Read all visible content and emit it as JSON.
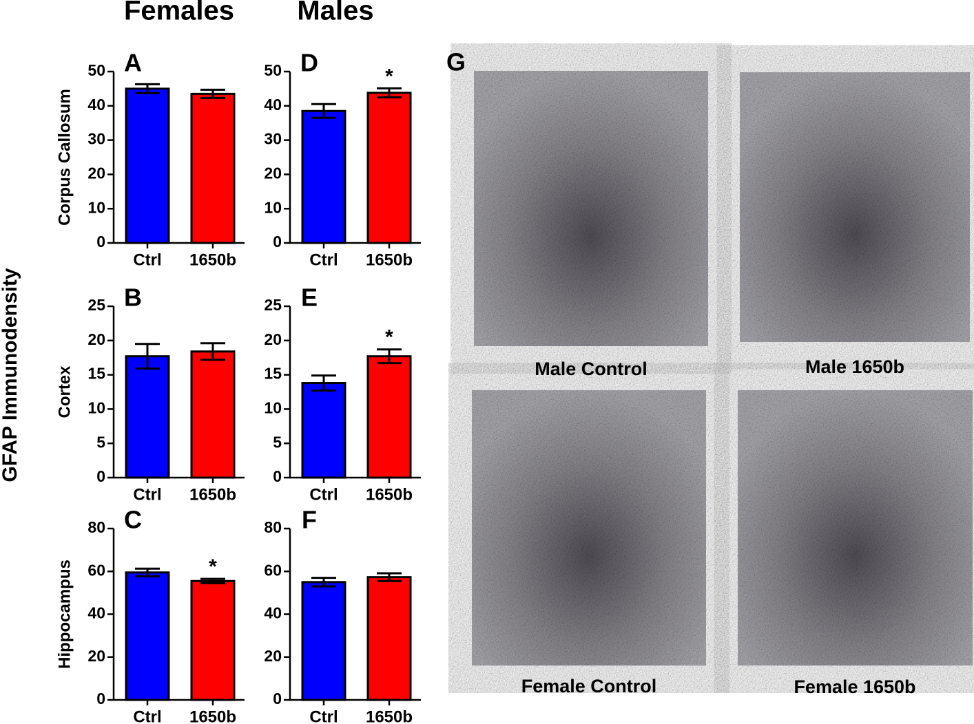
{
  "column_titles": [
    "Females",
    "Males"
  ],
  "shared_ylabel": "GFAP Immunodensity",
  "chart_data": [
    {
      "type": "bar",
      "panel": "A",
      "ylabel": "Corpus Callosum",
      "categories": [
        "Ctrl",
        "1650b"
      ],
      "values": [
        45,
        43.5
      ],
      "errors": [
        1.3,
        1.2
      ],
      "significance": [
        null,
        null
      ],
      "colors": [
        "#0000ff",
        "#ff0000"
      ],
      "ylim": [
        0,
        50
      ],
      "yticks": [
        0,
        10,
        20,
        30,
        40,
        50
      ]
    },
    {
      "type": "bar",
      "panel": "B",
      "ylabel": "Cortex",
      "categories": [
        "Ctrl",
        "1650b"
      ],
      "values": [
        17.7,
        18.4
      ],
      "errors": [
        1.8,
        1.2
      ],
      "significance": [
        null,
        null
      ],
      "colors": [
        "#0000ff",
        "#ff0000"
      ],
      "ylim": [
        0,
        25
      ],
      "yticks": [
        0,
        5,
        10,
        15,
        20,
        25
      ]
    },
    {
      "type": "bar",
      "panel": "C",
      "ylabel": "Hippocampus",
      "categories": [
        "Ctrl",
        "1650b"
      ],
      "values": [
        59.5,
        55.5
      ],
      "errors": [
        1.8,
        1.0
      ],
      "significance": [
        null,
        "*"
      ],
      "colors": [
        "#0000ff",
        "#ff0000"
      ],
      "ylim": [
        0,
        80
      ],
      "yticks": [
        0,
        20,
        40,
        60,
        80
      ]
    },
    {
      "type": "bar",
      "panel": "D",
      "categories": [
        "Ctrl",
        "1650b"
      ],
      "values": [
        38.5,
        43.8
      ],
      "errors": [
        2.0,
        1.3
      ],
      "significance": [
        null,
        "*"
      ],
      "colors": [
        "#0000ff",
        "#ff0000"
      ],
      "ylim": [
        0,
        50
      ],
      "yticks": [
        0,
        10,
        20,
        30,
        40,
        50
      ]
    },
    {
      "type": "bar",
      "panel": "E",
      "categories": [
        "Ctrl",
        "1650b"
      ],
      "values": [
        13.8,
        17.7
      ],
      "errors": [
        1.1,
        1.0
      ],
      "significance": [
        null,
        "*"
      ],
      "colors": [
        "#0000ff",
        "#ff0000"
      ],
      "ylim": [
        0,
        25
      ],
      "yticks": [
        0,
        5,
        10,
        15,
        20,
        25
      ]
    },
    {
      "type": "bar",
      "panel": "F",
      "categories": [
        "Ctrl",
        "1650b"
      ],
      "values": [
        55,
        57.3
      ],
      "errors": [
        2.0,
        1.8
      ],
      "significance": [
        null,
        null
      ],
      "colors": [
        "#0000ff",
        "#ff0000"
      ],
      "ylim": [
        0,
        80
      ],
      "yticks": [
        0,
        20,
        40,
        60,
        80
      ]
    }
  ],
  "micrographs": {
    "label": "G",
    "captions": [
      "Male Control",
      "Male 1650b",
      "Female Control",
      "Female 1650b"
    ]
  }
}
